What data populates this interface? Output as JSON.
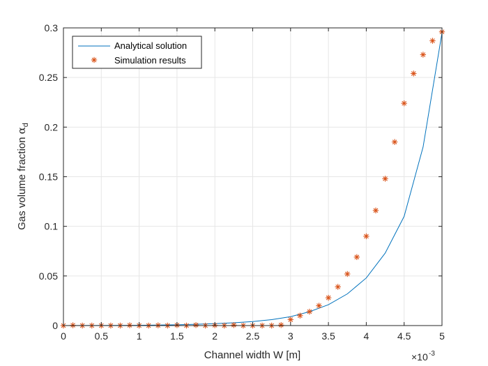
{
  "chart_data": {
    "type": "line",
    "xlabel": "Channel width W [m]",
    "ylabel_main": "Gas volume fraction ",
    "ylabel_symbol": "α",
    "ylabel_sub": "d",
    "x_exponent_base": "×10",
    "x_exponent_power": "-3",
    "xlim": [
      0,
      5
    ],
    "ylim": [
      0,
      0.3
    ],
    "x_ticks": [
      0,
      0.5,
      1,
      1.5,
      2,
      2.5,
      3,
      3.5,
      4,
      4.5,
      5
    ],
    "x_tick_labels": [
      "0",
      "0.5",
      "1",
      "1.5",
      "2",
      "2.5",
      "3",
      "3.5",
      "4",
      "4.5",
      "5"
    ],
    "y_ticks": [
      0,
      0.05,
      0.1,
      0.15,
      0.2,
      0.25,
      0.3
    ],
    "y_tick_labels": [
      "0",
      "0.05",
      "0.1",
      "0.15",
      "0.2",
      "0.25",
      "0.3"
    ],
    "grid": true,
    "legend_position": "top-left",
    "series": [
      {
        "name": "Analytical solution",
        "style": "line",
        "color": "#0072BD",
        "x": [
          0,
          0.25,
          0.5,
          0.75,
          1,
          1.25,
          1.5,
          1.75,
          2,
          2.25,
          2.5,
          2.75,
          3,
          3.25,
          3.5,
          3.75,
          4,
          4.25,
          4.5,
          4.75,
          5
        ],
        "y": [
          0.0,
          0.0001,
          0.0001,
          0.0002,
          0.0003,
          0.0005,
          0.0008,
          0.0013,
          0.0019,
          0.0028,
          0.004,
          0.006,
          0.009,
          0.014,
          0.021,
          0.032,
          0.048,
          0.073,
          0.11,
          0.18,
          0.295
        ]
      },
      {
        "name": "Simulation results",
        "style": "marker",
        "color": "#D95319",
        "x": [
          0,
          0.125,
          0.25,
          0.375,
          0.5,
          0.625,
          0.75,
          0.875,
          1,
          1.125,
          1.25,
          1.375,
          1.5,
          1.625,
          1.75,
          1.875,
          2,
          2.125,
          2.25,
          2.375,
          2.5,
          2.625,
          2.75,
          2.875,
          3,
          3.125,
          3.25,
          3.375,
          3.5,
          3.625,
          3.75,
          3.875,
          4,
          4.125,
          4.25,
          4.375,
          4.5,
          4.625,
          4.75,
          4.875,
          5
        ],
        "y": [
          0,
          0.0003,
          0,
          0,
          0,
          0,
          0,
          0.0003,
          0,
          0,
          0.0002,
          0,
          0.0004,
          0,
          0.0005,
          0,
          0.0003,
          0,
          0.0005,
          0,
          0,
          0,
          0,
          0.0005,
          0.006,
          0.01,
          0.014,
          0.02,
          0.028,
          0.039,
          0.052,
          0.069,
          0.09,
          0.116,
          0.148,
          0.185,
          0.224,
          0.254,
          0.273,
          0.287,
          0.296
        ]
      }
    ]
  }
}
